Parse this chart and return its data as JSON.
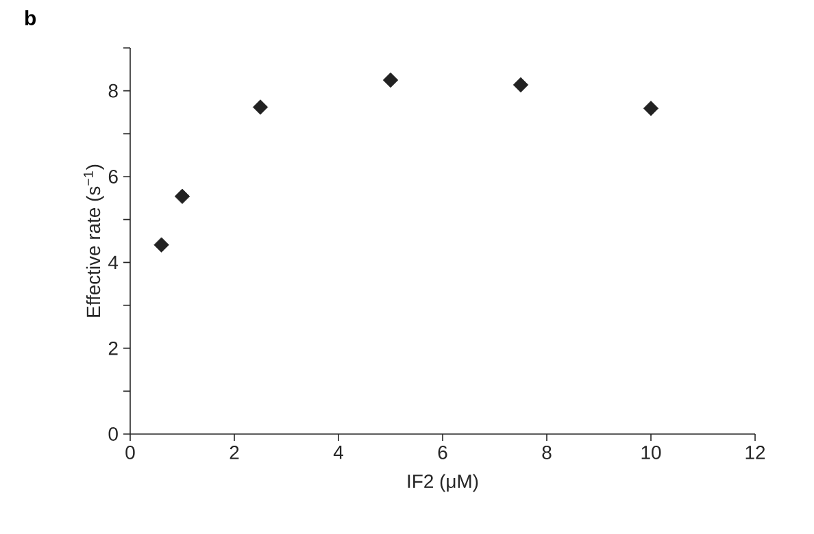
{
  "chart_data": {
    "type": "scatter",
    "annotations": [
      "b"
    ],
    "xlabel": "IF2 (μM)",
    "ylabel": "Effective rate (s$^{−1}$)",
    "x": [
      0.6,
      1,
      2.5,
      5,
      7.5,
      10
    ],
    "values": [
      4.41,
      5.54,
      7.62,
      8.25,
      8.14,
      7.59
    ],
    "color": "#222222",
    "marker": "diamond",
    "xlim": [
      0,
      12
    ],
    "xticks": [
      0,
      2,
      4,
      6,
      8,
      10,
      12
    ],
    "ylim": [
      0,
      9
    ],
    "yticks": [
      0,
      {
        "value": 1,
        "label": null
      },
      2,
      {
        "value": 3,
        "label": null
      },
      4,
      {
        "value": 5,
        "label": null
      },
      6,
      {
        "value": 7,
        "label": null
      },
      8,
      {
        "value": 9,
        "label": null
      }
    ]
  }
}
